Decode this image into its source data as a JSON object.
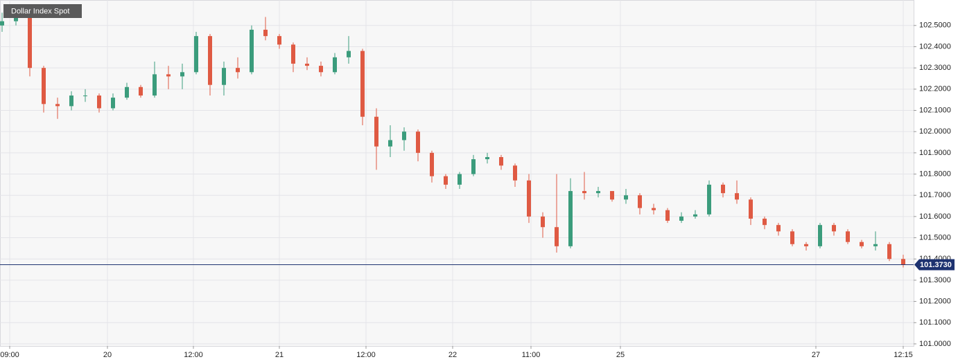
{
  "chart_data": {
    "type": "candlestick",
    "title": "Dollar Index Spot",
    "open": [
      102.5,
      102.52,
      102.57,
      102.3,
      102.13,
      102.12,
      102.17,
      102.17,
      102.11,
      102.16,
      102.21,
      102.17,
      102.27,
      102.26,
      102.28,
      102.45,
      102.22,
      102.3,
      102.28,
      102.48,
      102.45,
      102.41,
      102.32,
      102.31,
      102.28,
      102.35,
      102.38,
      102.07,
      101.93,
      101.96,
      102.0,
      101.9,
      101.79,
      101.75,
      101.8,
      101.87,
      101.88,
      101.84,
      101.77,
      101.6,
      101.55,
      101.46,
      101.72,
      101.71,
      101.72,
      101.68,
      101.7,
      101.64,
      101.63,
      101.58,
      101.6,
      101.61,
      101.75,
      101.71,
      101.68,
      101.59,
      101.56,
      101.53,
      101.47,
      101.46,
      101.56,
      101.53,
      101.48,
      101.46,
      101.47,
      101.4
    ],
    "high": [
      102.56,
      102.59,
      102.58,
      102.31,
      102.16,
      102.19,
      102.2,
      102.18,
      102.18,
      102.23,
      102.22,
      102.33,
      102.31,
      102.32,
      102.47,
      102.46,
      102.33,
      102.35,
      102.5,
      102.54,
      102.46,
      102.42,
      102.35,
      102.33,
      102.37,
      102.45,
      102.39,
      102.11,
      102.03,
      102.02,
      102.01,
      101.91,
      101.8,
      101.81,
      101.89,
      101.9,
      101.89,
      101.85,
      101.8,
      101.62,
      101.8,
      101.78,
      101.81,
      101.74,
      101.72,
      101.73,
      101.71,
      101.66,
      101.64,
      101.62,
      101.63,
      101.77,
      101.76,
      101.77,
      101.69,
      101.6,
      101.57,
      101.54,
      101.48,
      101.57,
      101.57,
      101.54,
      101.49,
      101.53,
      101.48,
      101.42
    ],
    "low": [
      102.47,
      102.5,
      102.26,
      102.09,
      102.06,
      102.1,
      102.14,
      102.09,
      102.1,
      102.15,
      102.16,
      102.16,
      102.2,
      102.2,
      102.27,
      102.17,
      102.17,
      102.25,
      102.27,
      102.43,
      102.39,
      102.28,
      102.29,
      102.26,
      102.27,
      102.32,
      102.03,
      101.82,
      101.88,
      101.91,
      101.86,
      101.76,
      101.73,
      101.73,
      101.79,
      101.85,
      101.82,
      101.74,
      101.57,
      101.5,
      101.43,
      101.45,
      101.68,
      101.69,
      101.67,
      101.66,
      101.61,
      101.61,
      101.57,
      101.57,
      101.59,
      101.6,
      101.69,
      101.66,
      101.56,
      101.54,
      101.51,
      101.46,
      101.44,
      101.45,
      101.51,
      101.47,
      101.45,
      101.44,
      101.39,
      101.36
    ],
    "close": [
      102.52,
      102.57,
      102.3,
      102.13,
      102.12,
      102.17,
      102.17,
      102.11,
      102.16,
      102.21,
      102.17,
      102.27,
      102.26,
      102.28,
      102.45,
      102.22,
      102.3,
      102.28,
      102.48,
      102.45,
      102.41,
      102.32,
      102.31,
      102.28,
      102.35,
      102.38,
      102.07,
      101.93,
      101.96,
      102.0,
      101.9,
      101.79,
      101.75,
      101.8,
      101.87,
      101.88,
      101.84,
      101.77,
      101.6,
      101.55,
      101.46,
      101.72,
      101.71,
      101.72,
      101.68,
      101.7,
      101.64,
      101.63,
      101.58,
      101.6,
      101.61,
      101.75,
      101.71,
      101.68,
      101.59,
      101.56,
      101.53,
      101.47,
      101.46,
      101.56,
      101.53,
      101.48,
      101.46,
      101.47,
      101.4,
      101.373
    ],
    "up_color": "#3b9c7c",
    "down_color": "#df5a43",
    "last_price": {
      "value": 101.373,
      "label": "101.3730"
    },
    "last_price_color": "#1d3270",
    "ylim": [
      100.99,
      102.62
    ],
    "yticks": [
      {
        "value": 101.0,
        "label": "101.0000"
      },
      {
        "value": 101.1,
        "label": "101.1000"
      },
      {
        "value": 101.2,
        "label": "101.2000"
      },
      {
        "value": 101.3,
        "label": "101.3000"
      },
      {
        "value": 101.4,
        "label": "101.4000"
      },
      {
        "value": 101.5,
        "label": "101.5000"
      },
      {
        "value": 101.6,
        "label": "101.6000"
      },
      {
        "value": 101.7,
        "label": "101.7000"
      },
      {
        "value": 101.8,
        "label": "101.8000"
      },
      {
        "value": 101.9,
        "label": "101.9000"
      },
      {
        "value": 102.0,
        "label": "102.0000"
      },
      {
        "value": 102.1,
        "label": "102.1000"
      },
      {
        "value": 102.2,
        "label": "102.2000"
      },
      {
        "value": 102.3,
        "label": "102.3000"
      },
      {
        "value": 102.4,
        "label": "102.4000"
      },
      {
        "value": 102.5,
        "label": "102.5000"
      }
    ],
    "xlim": [
      -0.15,
      65.75
    ],
    "xticks": [
      {
        "value": 0.55,
        "label": "09:00"
      },
      {
        "value": 7.6,
        "label": "20"
      },
      {
        "value": 13.8,
        "label": "12:00"
      },
      {
        "value": 20,
        "label": "21"
      },
      {
        "value": 26.25,
        "label": "12:00"
      },
      {
        "value": 32.5,
        "label": "22"
      },
      {
        "value": 38.15,
        "label": "11:00"
      },
      {
        "value": 44.6,
        "label": "25"
      },
      {
        "value": 58.7,
        "label": "27"
      },
      {
        "value": 65,
        "label": "12:15"
      }
    ],
    "grid": true
  }
}
